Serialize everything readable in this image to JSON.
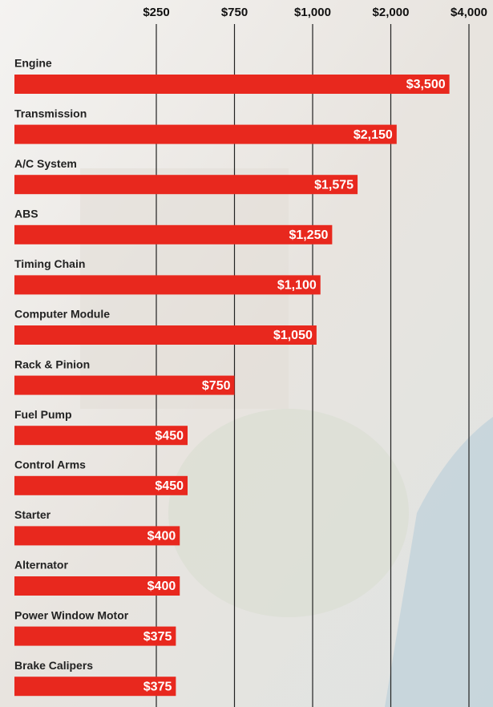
{
  "chart_data": {
    "type": "bar",
    "orientation": "horizontal",
    "color": "#e8281e",
    "categories": [
      "Engine",
      "Transmission",
      "A/C System",
      "ABS",
      "Timing Chain",
      "Computer Module",
      "Rack & Pinion",
      "Fuel Pump",
      "Control Arms",
      "Starter",
      "Alternator",
      "Power Window Motor",
      "Brake Calipers"
    ],
    "values": [
      3500,
      2150,
      1575,
      1250,
      1100,
      1050,
      750,
      450,
      450,
      400,
      400,
      375,
      375
    ],
    "value_labels": [
      "$3,500",
      "$2,150",
      "$1,575",
      "$1,250",
      "$1,100",
      "$1,050",
      "$750",
      "$450",
      "$450",
      "$400",
      "$400",
      "$375",
      "$375"
    ],
    "xlim": [
      0,
      4000
    ],
    "xticks": [
      {
        "value": 250,
        "label": "$250"
      },
      {
        "value": 750,
        "label": "$750"
      },
      {
        "value": 1000,
        "label": "$1,000"
      },
      {
        "value": 2000,
        "label": "$2,000"
      },
      {
        "value": 4000,
        "label": "$4,000"
      }
    ],
    "grid": true
  }
}
